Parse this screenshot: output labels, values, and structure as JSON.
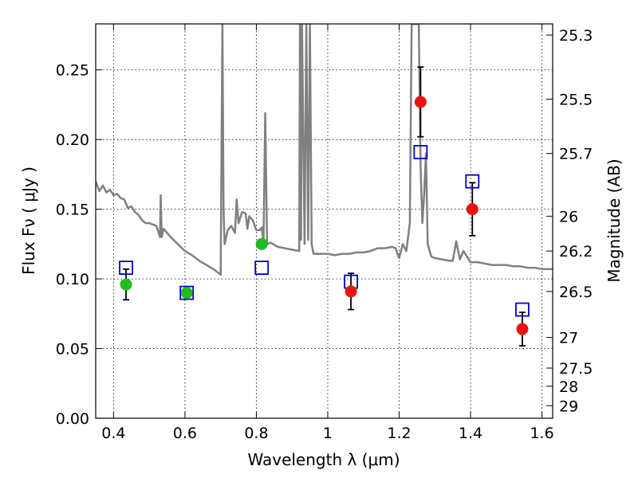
{
  "chart_data": {
    "type": "scatter",
    "xlabel": "Wavelength  λ (μm)",
    "ylabel": "Flux  Fν  ( μJy )",
    "y2label": "Magnitude (AB)",
    "xlim": [
      0.35,
      1.63
    ],
    "ylim": [
      0.0,
      0.283
    ],
    "grid": true,
    "x_ticks": [
      0.4,
      0.6,
      0.8,
      1.0,
      1.2,
      1.4,
      1.6
    ],
    "x_tick_labels": [
      "0.4",
      "0.6",
      "0.8",
      "1",
      "1.2",
      "1.4",
      "1.6"
    ],
    "y_ticks": [
      0.0,
      0.05,
      0.1,
      0.15,
      0.2,
      0.25
    ],
    "y_tick_labels": [
      "0.00",
      "0.05",
      "0.10",
      "0.15",
      "0.20",
      "0.25"
    ],
    "y2_ticks": [
      {
        "label": "25.3",
        "flux": 0.275
      },
      {
        "label": "25.5",
        "flux": 0.229
      },
      {
        "label": "25.7",
        "flux": 0.19
      },
      {
        "label": "26",
        "flux": 0.145
      },
      {
        "label": "26.2",
        "flux": 0.12
      },
      {
        "label": "26.5",
        "flux": 0.091
      },
      {
        "label": "27",
        "flux": 0.058
      },
      {
        "label": "27.5",
        "flux": 0.036
      },
      {
        "label": "28",
        "flux": 0.023
      },
      {
        "label": "29",
        "flux": 0.009
      }
    ],
    "series": [
      {
        "kind": "line",
        "color": "#808080",
        "x": [
          0.35,
          0.36,
          0.37,
          0.38,
          0.39,
          0.4,
          0.41,
          0.42,
          0.43,
          0.44,
          0.45,
          0.46,
          0.47,
          0.48,
          0.49,
          0.5,
          0.52,
          0.53,
          0.532,
          0.535,
          0.54,
          0.56,
          0.58,
          0.6,
          0.62,
          0.64,
          0.66,
          0.68,
          0.7,
          0.705,
          0.708,
          0.711,
          0.72,
          0.73,
          0.74,
          0.745,
          0.75,
          0.76,
          0.77,
          0.775,
          0.78,
          0.79,
          0.8,
          0.81,
          0.815,
          0.82,
          0.825,
          0.83,
          0.84,
          0.86,
          0.88,
          0.9,
          0.92,
          0.922,
          0.925,
          0.928,
          0.935,
          0.94,
          0.945,
          0.95,
          0.955,
          0.96,
          0.98,
          1.0,
          1.02,
          1.04,
          1.06,
          1.08,
          1.1,
          1.12,
          1.14,
          1.16,
          1.18,
          1.19,
          1.2,
          1.21,
          1.22,
          1.23,
          1.235,
          1.24,
          1.25,
          1.255,
          1.26,
          1.265,
          1.27,
          1.275,
          1.28,
          1.29,
          1.3,
          1.32,
          1.34,
          1.35,
          1.36,
          1.37,
          1.38,
          1.4,
          1.42,
          1.44,
          1.46,
          1.48,
          1.5,
          1.52,
          1.54,
          1.56,
          1.58,
          1.6,
          1.62,
          1.63
        ],
        "y": [
          0.17,
          0.163,
          0.167,
          0.162,
          0.164,
          0.16,
          0.161,
          0.158,
          0.157,
          0.151,
          0.152,
          0.148,
          0.146,
          0.142,
          0.14,
          0.14,
          0.138,
          0.13,
          0.16,
          0.13,
          0.136,
          0.13,
          0.125,
          0.12,
          0.117,
          0.113,
          0.11,
          0.107,
          0.103,
          0.283,
          0.15,
          0.125,
          0.135,
          0.138,
          0.133,
          0.157,
          0.14,
          0.148,
          0.147,
          0.136,
          0.145,
          0.142,
          0.135,
          0.135,
          0.137,
          0.126,
          0.219,
          0.125,
          0.126,
          0.123,
          0.122,
          0.121,
          0.12,
          0.283,
          0.128,
          0.283,
          0.125,
          0.283,
          0.128,
          0.283,
          0.125,
          0.118,
          0.118,
          0.118,
          0.117,
          0.118,
          0.118,
          0.119,
          0.119,
          0.12,
          0.122,
          0.122,
          0.123,
          0.122,
          0.115,
          0.125,
          0.12,
          0.14,
          0.283,
          0.283,
          0.283,
          0.283,
          0.18,
          0.14,
          0.16,
          0.19,
          0.125,
          0.116,
          0.115,
          0.114,
          0.113,
          0.113,
          0.127,
          0.114,
          0.12,
          0.112,
          0.112,
          0.111,
          0.11,
          0.11,
          0.11,
          0.109,
          0.109,
          0.108,
          0.108,
          0.107,
          0.107,
          0.107
        ]
      },
      {
        "kind": "open-square",
        "color": "#0000cc",
        "x": [
          0.435,
          0.605,
          0.815,
          1.065,
          1.26,
          1.405,
          1.545
        ],
        "y": [
          0.108,
          0.09,
          0.108,
          0.098,
          0.191,
          0.17,
          0.078
        ]
      },
      {
        "kind": "filled-circle",
        "color": "#22bb22",
        "x": [
          0.435,
          0.605,
          0.815
        ],
        "y": [
          0.096,
          0.09,
          0.125
        ]
      },
      {
        "kind": "filled-circle",
        "color": "#ee1111",
        "x": [
          1.065,
          1.26,
          1.405,
          1.545
        ],
        "y": [
          0.091,
          0.227,
          0.15,
          0.064
        ]
      }
    ],
    "errorbars": {
      "color": "#000000",
      "x": [
        0.435,
        1.065,
        1.26,
        1.405,
        1.545
      ],
      "y": [
        0.096,
        0.091,
        0.227,
        0.15,
        0.064
      ],
      "err": [
        0.011,
        0.013,
        0.025,
        0.019,
        0.012
      ]
    }
  }
}
